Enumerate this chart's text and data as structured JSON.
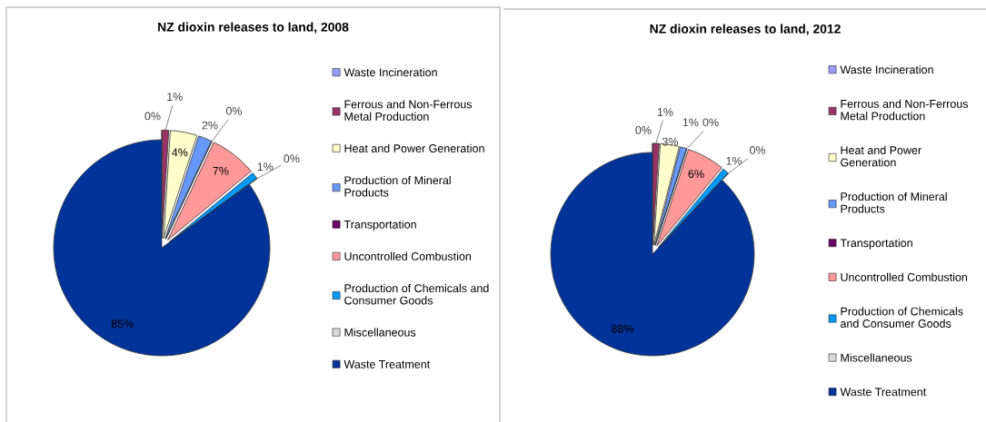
{
  "chart_data": [
    {
      "type": "pie",
      "title": "NZ dioxin releases to land, 2008",
      "categories": [
        "Waste Incineration",
        "Ferrous and Non-Ferrous Metal Production",
        "Heat and Power Generation",
        "Production of Mineral Products",
        "Transportation",
        "Uncontrolled Combustion",
        "Production of Chemicals and Consumer Goods",
        "Miscellaneous",
        "Waste Treatment"
      ],
      "values": [
        0,
        1,
        4,
        2,
        0,
        7,
        1,
        0,
        85
      ],
      "colors": [
        "#9999ff",
        "#993366",
        "#ffffcc",
        "#6699ff",
        "#660066",
        "#ff9999",
        "#0099ff",
        "#d9d9d9",
        "#003399"
      ],
      "value_labels": [
        "0%",
        "1%",
        "4%",
        "2%",
        "0%",
        "7%",
        "1%",
        "0%",
        "85%"
      ],
      "legend": "right"
    },
    {
      "type": "pie",
      "title": "NZ dioxin releases to land, 2012",
      "categories": [
        "Waste Incineration",
        "Ferrous and Non-Ferrous Metal Production",
        "Heat and Power Generation",
        "Production of Mineral Products",
        "Transportation",
        "Uncontrolled Combustion",
        "Production of Chemicals and Consumer Goods",
        "Miscellaneous",
        "Waste Treatment"
      ],
      "values": [
        0,
        1,
        3,
        1,
        0,
        6,
        1,
        0,
        88
      ],
      "colors": [
        "#9999ff",
        "#993366",
        "#ffffcc",
        "#6699ff",
        "#660066",
        "#ff9999",
        "#0099ff",
        "#d9d9d9",
        "#003399"
      ],
      "value_labels": [
        "0%",
        "1%",
        "3%",
        "1%",
        "0%",
        "6%",
        "1%",
        "0%",
        "88%"
      ],
      "legend": "right"
    }
  ]
}
